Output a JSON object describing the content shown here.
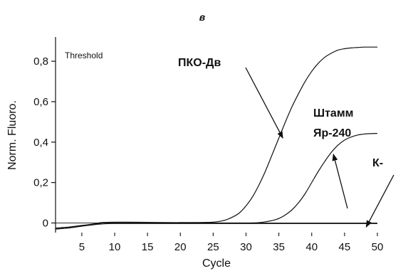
{
  "chart_data": {
    "type": "line",
    "panel_label": "в",
    "xlabel": "Cycle",
    "ylabel": "Norm. Fluoro.",
    "threshold_label": "Threshold",
    "xlim": [
      1,
      50
    ],
    "ylim": [
      -0.03,
      0.92
    ],
    "xticks": [
      5,
      10,
      15,
      20,
      25,
      30,
      35,
      40,
      45,
      50
    ],
    "yticks": [
      {
        "value": 0,
        "label": "0"
      },
      {
        "value": 0.2,
        "label": "0,2"
      },
      {
        "value": 0.4,
        "label": "0,4"
      },
      {
        "value": 0.6,
        "label": "0,6"
      },
      {
        "value": 0.8,
        "label": "0,8"
      }
    ],
    "grid": false,
    "threshold_value": 0.0,
    "series": [
      {
        "name": "ПКО-Дв",
        "x": [
          1,
          3,
          5,
          7,
          8,
          10,
          12,
          15,
          18,
          20,
          22,
          24,
          25,
          26,
          27,
          28,
          29,
          30,
          31,
          32,
          33,
          34,
          35,
          36,
          37,
          38,
          39,
          40,
          41,
          42,
          43,
          44,
          45,
          46,
          47,
          48,
          49,
          50
        ],
        "values": [
          -0.025,
          -0.02,
          -0.012,
          -0.004,
          0.002,
          0.004,
          0.004,
          0.003,
          0.002,
          0.002,
          0.002,
          0.003,
          0.004,
          0.008,
          0.016,
          0.03,
          0.05,
          0.085,
          0.13,
          0.19,
          0.26,
          0.34,
          0.42,
          0.5,
          0.575,
          0.64,
          0.7,
          0.75,
          0.79,
          0.82,
          0.84,
          0.855,
          0.862,
          0.866,
          0.868,
          0.87,
          0.87,
          0.87
        ]
      },
      {
        "name": "Штамм Яр-240",
        "x": [
          1,
          3,
          5,
          7,
          8,
          10,
          12,
          15,
          18,
          20,
          25,
          30,
          32,
          33,
          34,
          35,
          36,
          37,
          38,
          39,
          40,
          41,
          42,
          43,
          44,
          45,
          46,
          47,
          48,
          49,
          50
        ],
        "values": [
          -0.03,
          -0.025,
          -0.015,
          -0.006,
          0.0,
          0.002,
          0.002,
          0.002,
          0.0,
          0.0,
          0.0,
          0.0,
          0.002,
          0.006,
          0.012,
          0.022,
          0.04,
          0.065,
          0.1,
          0.145,
          0.2,
          0.255,
          0.305,
          0.35,
          0.385,
          0.41,
          0.425,
          0.435,
          0.44,
          0.442,
          0.443
        ]
      },
      {
        "name": "К-",
        "x": [
          1,
          3,
          5,
          7,
          8,
          10,
          15,
          20,
          25,
          30,
          35,
          40,
          45,
          50
        ],
        "values": [
          -0.03,
          -0.024,
          -0.016,
          -0.008,
          -0.005,
          -0.003,
          -0.003,
          -0.003,
          -0.003,
          -0.003,
          -0.003,
          -0.003,
          -0.003,
          -0.003
        ]
      }
    ],
    "annotations": [
      {
        "id": "pko",
        "lines": [
          "ПКО-Дв"
        ],
        "arrow_to": {
          "x": 35.6,
          "y": 0.42
        }
      },
      {
        "id": "strain",
        "lines": [
          "Штамм",
          "Яр-240"
        ],
        "arrow_to": {
          "x": 43.3,
          "y": 0.34
        }
      },
      {
        "id": "kneg",
        "lines": [
          "К-"
        ],
        "arrow_to": {
          "x": 48.3,
          "y": -0.02
        }
      }
    ]
  }
}
